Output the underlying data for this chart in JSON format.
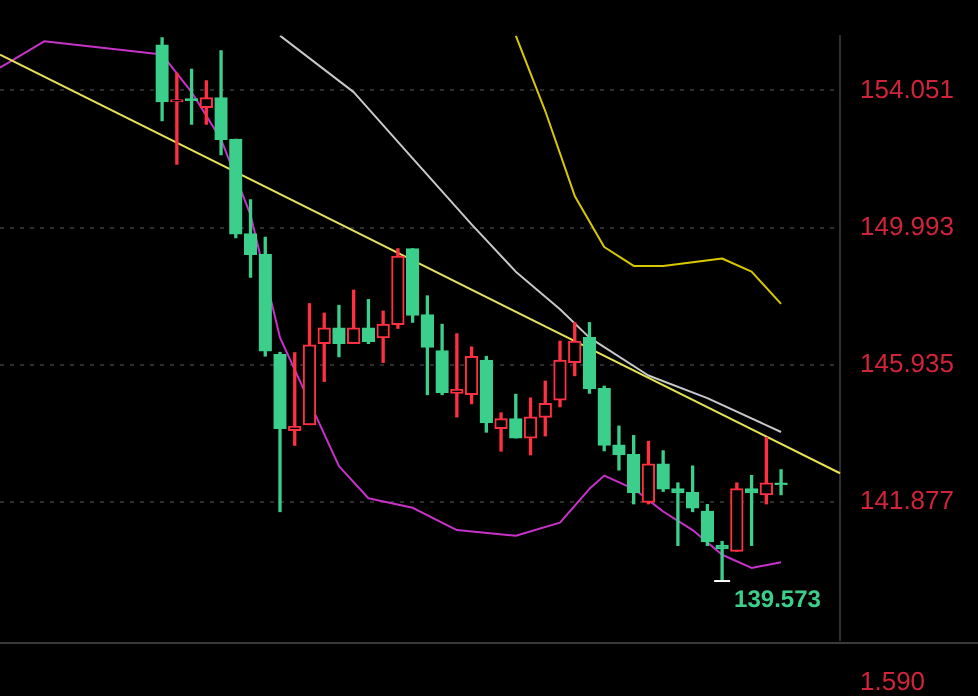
{
  "chart_data": {
    "type": "candlestick",
    "categories": [
      null,
      null,
      null,
      null,
      null,
      null,
      null,
      null,
      null,
      null,
      null,
      null,
      null,
      null,
      null,
      null,
      null,
      null,
      null,
      null,
      null,
      null,
      null,
      null,
      null,
      null,
      null,
      null,
      null,
      null,
      null,
      null,
      null,
      null,
      null,
      null,
      null,
      null,
      null,
      null,
      null,
      null,
      null,
      null,
      null,
      null,
      null,
      null,
      null,
      null,
      null,
      null,
      null,
      null,
      null,
      null,
      null,
      null
    ],
    "ohlc": [
      null,
      null,
      null,
      null,
      null,
      null,
      null,
      null,
      null,
      null,
      null,
      [
        155.39,
        155.6,
        153.16,
        153.72
      ],
      [
        153.72,
        154.55,
        151.87,
        153.77
      ],
      [
        153.8,
        154.67,
        153.05,
        153.75
      ],
      [
        153.55,
        154.33,
        153.05,
        153.83
      ],
      [
        153.83,
        155.22,
        152.15,
        152.6
      ],
      [
        152.6,
        152.6,
        149.7,
        149.81
      ],
      [
        149.81,
        150.81,
        148.53,
        149.2
      ],
      [
        149.2,
        149.7,
        146.2,
        146.35
      ],
      [
        146.24,
        146.3,
        141.6,
        144.06
      ],
      [
        144.0,
        146.29,
        143.56,
        144.11
      ],
      [
        144.17,
        147.74,
        144.17,
        146.52
      ],
      [
        146.57,
        147.46,
        145.45,
        147.02
      ],
      [
        147.02,
        147.69,
        146.18,
        146.57
      ],
      [
        146.57,
        148.14,
        146.57,
        147.02
      ],
      [
        147.02,
        147.86,
        146.57,
        146.63
      ],
      [
        146.74,
        147.52,
        146.01,
        147.13
      ],
      [
        147.13,
        149.36,
        147.02,
        149.14
      ],
      [
        149.36,
        149.36,
        147.2,
        147.41
      ],
      [
        147.41,
        147.97,
        145.06,
        146.46
      ],
      [
        146.35,
        147.13,
        145.06,
        145.12
      ],
      [
        145.1,
        146.85,
        144.4,
        145.2
      ],
      [
        145.06,
        146.46,
        144.79,
        146.18
      ],
      [
        146.07,
        146.18,
        143.95,
        144.23
      ],
      [
        144.06,
        144.51,
        143.39,
        144.34
      ],
      [
        144.34,
        145.06,
        143.78,
        143.78
      ],
      [
        143.78,
        144.95,
        143.28,
        144.39
      ],
      [
        144.39,
        145.45,
        143.84,
        144.79
      ],
      [
        144.9,
        146.63,
        144.7,
        146.07
      ],
      [
        146.01,
        147.18,
        145.62,
        146.63
      ],
      [
        146.74,
        147.18,
        145.1,
        145.23
      ],
      [
        145.23,
        145.3,
        143.4,
        143.56
      ],
      [
        143.56,
        144.12,
        142.83,
        143.28
      ],
      [
        143.28,
        143.84,
        141.83,
        142.16
      ],
      [
        141.88,
        143.67,
        141.83,
        143.0
      ],
      [
        143.0,
        143.39,
        142.2,
        142.27
      ],
      [
        142.27,
        142.44,
        140.6,
        142.16
      ],
      [
        142.16,
        142.94,
        141.6,
        141.71
      ],
      [
        141.6,
        141.8,
        140.6,
        140.71
      ],
      [
        140.6,
        140.71,
        139.573,
        140.5
      ],
      [
        140.43,
        142.44,
        140.43,
        142.27
      ],
      [
        142.27,
        142.66,
        140.6,
        142.16
      ],
      [
        142.1,
        143.78,
        141.83,
        142.44
      ],
      [
        142.44,
        142.83,
        142.1,
        142.4
      ],
      null,
      null,
      null,
      null
    ],
    "series": [
      {
        "type": "line",
        "color": "#e6e05a",
        "values": [
          155.11,
          null,
          null,
          null,
          null,
          null,
          null,
          null,
          null,
          null,
          null,
          null,
          null,
          null,
          null,
          null,
          null,
          null,
          null,
          null,
          null,
          null,
          null,
          null,
          null,
          null,
          null,
          null,
          null,
          null,
          null,
          null,
          null,
          null,
          null,
          null,
          null,
          null,
          null,
          null,
          null,
          null,
          null,
          null,
          null,
          null,
          null,
          null,
          null,
          null,
          null,
          null,
          null,
          null,
          null,
          null,
          null,
          142.73
        ]
      },
      {
        "type": "line",
        "color": "#c8c8c8",
        "values": [
          null,
          null,
          null,
          null,
          null,
          null,
          null,
          null,
          null,
          null,
          null,
          null,
          null,
          null,
          null,
          null,
          null,
          null,
          null,
          155.67,
          null,
          null,
          null,
          null,
          154.0,
          null,
          null,
          null,
          152.04,
          null,
          null,
          null,
          150.09,
          null,
          null,
          148.69,
          null,
          null,
          147.58,
          null,
          146.74,
          null,
          null,
          null,
          145.62,
          null,
          null,
          null,
          144.95,
          null,
          null,
          null,
          null,
          143.95,
          null,
          null,
          null,
          null
        ]
      },
      {
        "type": "line",
        "color": "#c832c8",
        "values": [
          154.72,
          null,
          null,
          155.5,
          null,
          null,
          null,
          null,
          null,
          null,
          null,
          155.11,
          null,
          154.0,
          null,
          152.6,
          null,
          150.37,
          null,
          146.74,
          null,
          null,
          null,
          142.94,
          null,
          141.99,
          null,
          null,
          141.71,
          null,
          null,
          141.05,
          null,
          null,
          null,
          140.88,
          null,
          null,
          141.27,
          null,
          142.27,
          142.66,
          null,
          142.27,
          null,
          141.6,
          null,
          141.05,
          null,
          140.32,
          null,
          139.93,
          null,
          140.1,
          null,
          null,
          null,
          null
        ]
      },
      {
        "type": "line",
        "color": "#d8c800",
        "values": [
          null,
          null,
          null,
          null,
          null,
          null,
          null,
          null,
          null,
          null,
          null,
          null,
          null,
          null,
          null,
          null,
          null,
          null,
          null,
          null,
          null,
          null,
          null,
          null,
          null,
          null,
          null,
          null,
          null,
          null,
          null,
          null,
          null,
          null,
          null,
          155.67,
          null,
          153.44,
          null,
          150.93,
          null,
          149.42,
          null,
          148.86,
          null,
          148.86,
          null,
          148.97,
          null,
          149.08,
          null,
          148.69,
          null,
          147.74,
          null,
          null,
          null,
          null
        ]
      }
    ],
    "ylim": [
      137.8,
      155.67
    ],
    "yticks": [
      141.877,
      145.935,
      149.993,
      154.051
    ],
    "grid": "y",
    "legend": false,
    "tick_labels": "y",
    "annotations": [
      "139.573",
      "1.590"
    ]
  }
}
